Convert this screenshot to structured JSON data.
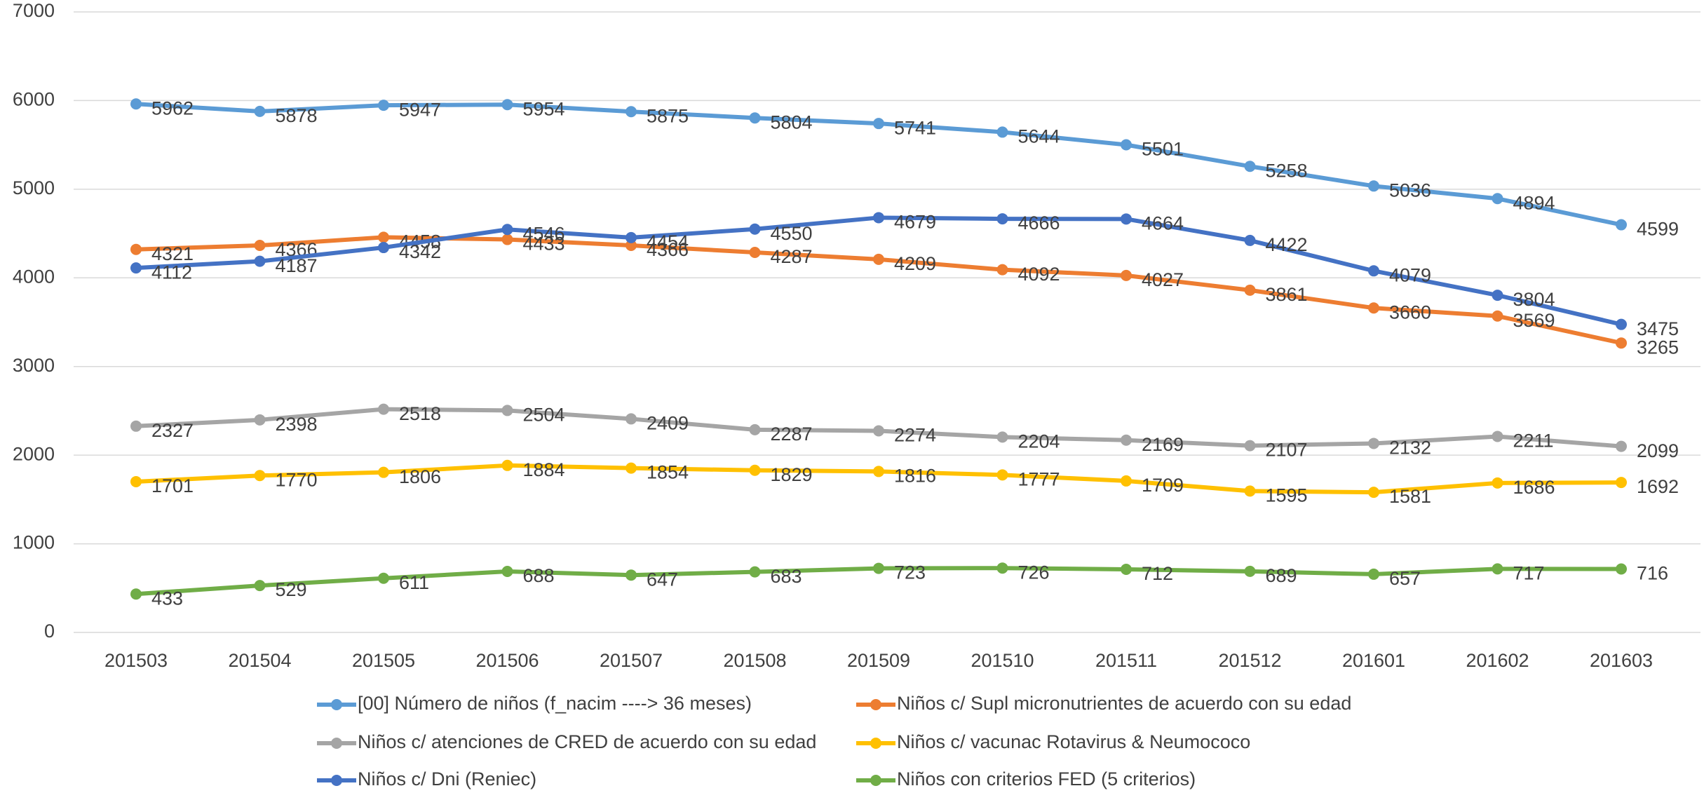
{
  "chart_data": {
    "type": "line",
    "categories": [
      "201503",
      "201504",
      "201505",
      "201506",
      "201507",
      "201508",
      "201509",
      "201510",
      "201511",
      "201512",
      "201601",
      "201602",
      "201603"
    ],
    "series": [
      {
        "name": "[00] Número de niños (f_nacim ----> 36 meses)",
        "color": "#5b9bd5",
        "values": [
          5962,
          5878,
          5947,
          5954,
          5875,
          5804,
          5741,
          5644,
          5501,
          5258,
          5036,
          4894,
          4599
        ]
      },
      {
        "name": "Niños c/ Supl micronutrientes de acuerdo con su edad",
        "color": "#ed7d31",
        "values": [
          4321,
          4366,
          4458,
          4433,
          4366,
          4287,
          4209,
          4092,
          4027,
          3861,
          3660,
          3569,
          3265
        ]
      },
      {
        "name": "Niños c/ atenciones de CRED de acuerdo con su edad",
        "color": "#a5a5a5",
        "values": [
          2327,
          2398,
          2518,
          2504,
          2409,
          2287,
          2274,
          2204,
          2169,
          2107,
          2132,
          2211,
          2099
        ]
      },
      {
        "name": "Niños c/ vacunac Rotavirus & Neumococo",
        "color": "#ffc000",
        "values": [
          1701,
          1770,
          1806,
          1884,
          1854,
          1829,
          1816,
          1777,
          1709,
          1595,
          1581,
          1686,
          1692
        ]
      },
      {
        "name": "Niños c/ Dni (Reniec)",
        "color": "#4472c4",
        "values": [
          4112,
          4187,
          4342,
          4546,
          4454,
          4550,
          4679,
          4666,
          4664,
          4422,
          4079,
          3804,
          3475
        ]
      },
      {
        "name": "Niños con criterios FED (5 criterios)",
        "color": "#70ad47",
        "values": [
          433,
          529,
          611,
          688,
          647,
          683,
          723,
          726,
          712,
          689,
          657,
          717,
          716
        ]
      }
    ],
    "ylim": [
      0,
      7000
    ],
    "yticks": [
      0,
      1000,
      2000,
      3000,
      4000,
      5000,
      6000,
      7000
    ],
    "grid": true
  }
}
